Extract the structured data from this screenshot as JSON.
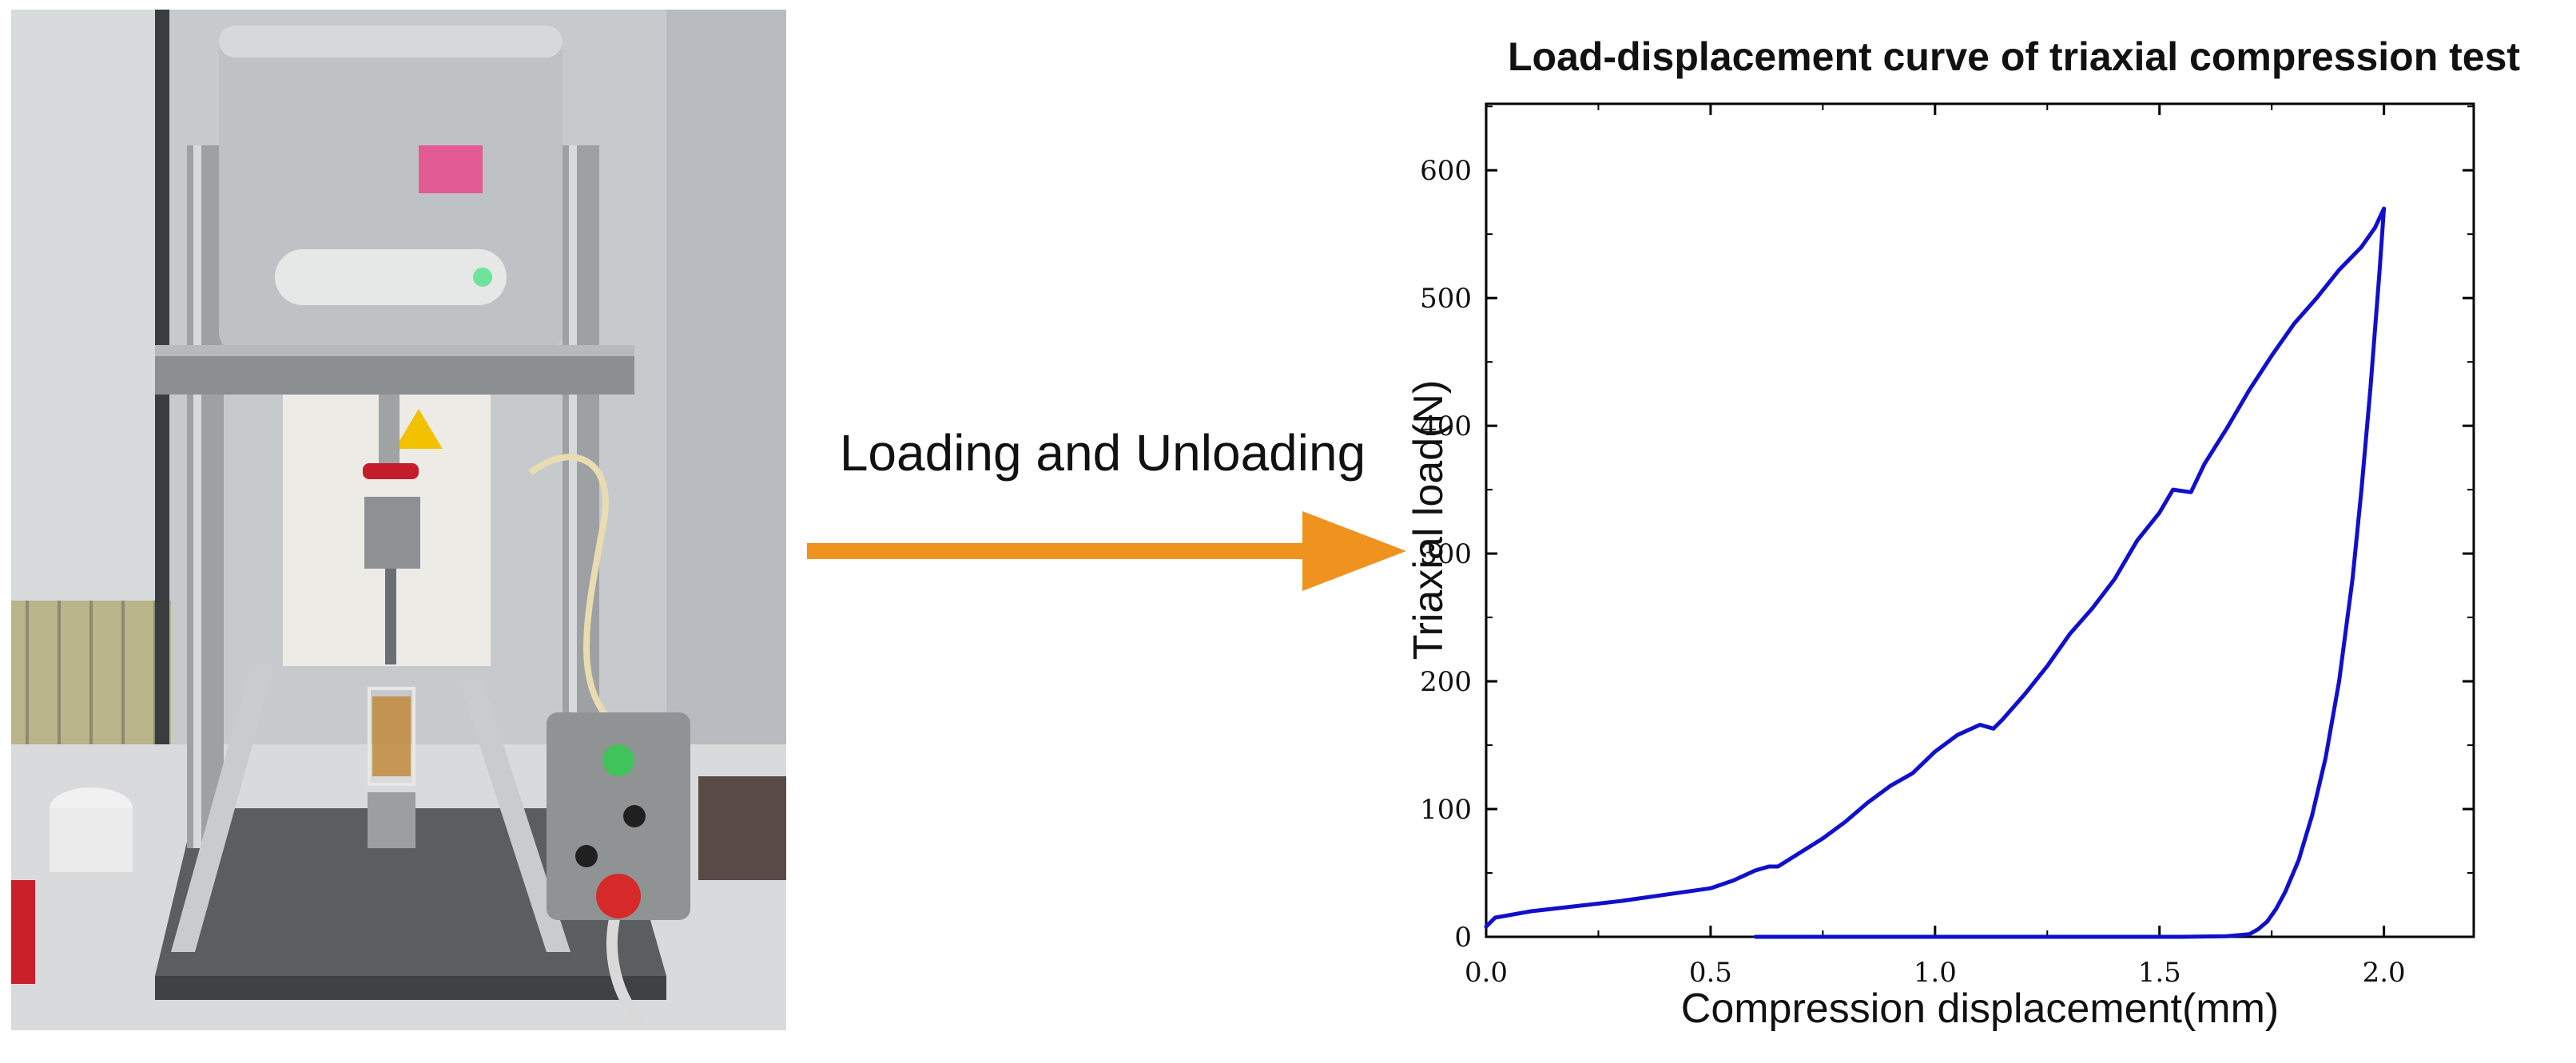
{
  "photo": {
    "sticker_text": "",
    "machine_text": ""
  },
  "arrow": {
    "label": "Loading and Unloading",
    "color": "#F0921E"
  },
  "chart_data": {
    "type": "line",
    "title": "Load-displacement curve of triaxial compression test",
    "xlabel": "Compression displacement(mm)",
    "ylabel": "Triaxial load(N)",
    "xlim": [
      0,
      2.2
    ],
    "ylim": [
      0,
      600
    ],
    "x_ticks": [
      "0.0",
      "0.5",
      "1.0",
      "1.5",
      "2.0"
    ],
    "y_ticks": [
      "0",
      "100",
      "200",
      "300",
      "400",
      "500",
      "600"
    ],
    "grid": false,
    "line_color": "#1010CC",
    "series": [
      {
        "segment": "loading",
        "x": [
          0.0,
          0.02,
          0.1,
          0.2,
          0.3,
          0.4,
          0.5,
          0.55,
          0.6,
          0.63,
          0.65,
          0.7,
          0.75,
          0.8,
          0.85,
          0.9,
          0.95,
          1.0,
          1.05,
          1.1,
          1.13,
          1.15,
          1.2,
          1.25,
          1.3,
          1.35,
          1.4,
          1.45,
          1.5,
          1.53,
          1.57,
          1.6,
          1.65,
          1.7,
          1.75,
          1.8,
          1.85,
          1.9,
          1.95,
          1.98,
          2.0
        ],
        "y": [
          8,
          15,
          20,
          24,
          28,
          33,
          38,
          44,
          52,
          55,
          55,
          66,
          77,
          90,
          105,
          118,
          128,
          145,
          158,
          166,
          163,
          170,
          190,
          212,
          237,
          257,
          280,
          310,
          332,
          350,
          348,
          370,
          398,
          428,
          455,
          480,
          500,
          522,
          540,
          555,
          570
        ]
      },
      {
        "segment": "unloading",
        "x": [
          2.0,
          1.99,
          1.97,
          1.95,
          1.93,
          1.9,
          1.87,
          1.84,
          1.81,
          1.78,
          1.76,
          1.74,
          1.72,
          1.7,
          1.65,
          1.55,
          1.4,
          1.2,
          0.9,
          0.6
        ],
        "y": [
          570,
          520,
          430,
          350,
          280,
          200,
          140,
          95,
          60,
          35,
          22,
          12,
          6,
          2,
          0.5,
          0,
          0,
          0,
          0,
          0
        ]
      }
    ]
  }
}
